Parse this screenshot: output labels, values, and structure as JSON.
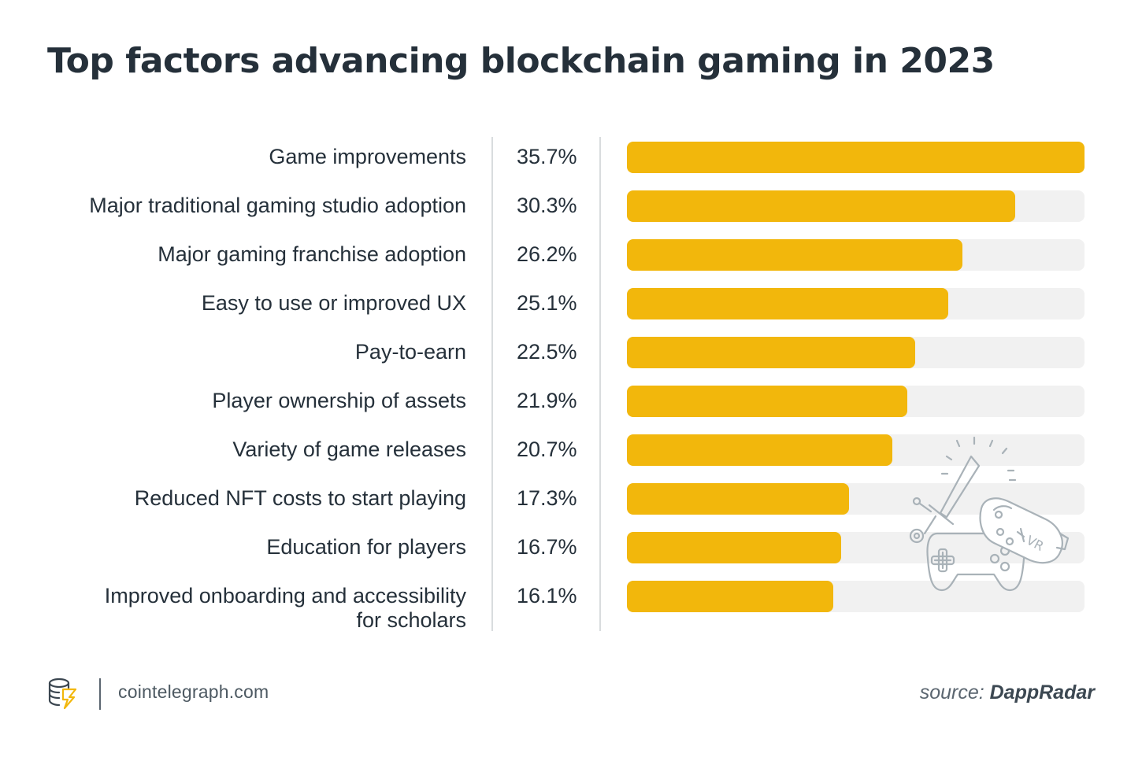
{
  "title": "Top factors advancing blockchain gaming in 2023",
  "chart_data": {
    "type": "bar",
    "orientation": "horizontal",
    "title": "Top factors advancing blockchain gaming in 2023",
    "categories": [
      "Game improvements",
      "Major traditional gaming studio adoption",
      "Major gaming franchise adoption",
      "Easy to use or improved UX",
      "Pay-to-earn",
      "Player ownership of assets",
      "Variety of game releases",
      "Reduced NFT costs to start playing",
      "Education for players",
      "Improved onboarding and accessibility for scholars"
    ],
    "label_lines": [
      [
        "Game improvements"
      ],
      [
        "Major traditional gaming studio adoption"
      ],
      [
        "Major gaming franchise adoption"
      ],
      [
        "Easy to use or improved UX"
      ],
      [
        "Pay-to-earn"
      ],
      [
        "Player ownership of assets"
      ],
      [
        "Variety of game releases"
      ],
      [
        "Reduced NFT costs to start playing"
      ],
      [
        "Education for players"
      ],
      [
        "Improved onboarding and accessibility",
        "for scholars"
      ]
    ],
    "values": [
      35.7,
      30.3,
      26.2,
      25.1,
      22.5,
      21.9,
      20.7,
      17.3,
      16.7,
      16.1
    ],
    "value_labels": [
      "35.7%",
      "30.3%",
      "26.2%",
      "25.1%",
      "22.5%",
      "21.9%",
      "20.7%",
      "17.3%",
      "16.7%",
      "16.1%"
    ],
    "unit": "%",
    "xlim": [
      0,
      35.7
    ],
    "grid": false,
    "colors": {
      "bar": "#f2b70c",
      "track": "#f1f1f1"
    }
  },
  "illustration": {
    "icon": "vr-controller-sword-icon",
    "text": "VR"
  },
  "footer": {
    "logo_icon": "cointelegraph-logo-icon",
    "site": "cointelegraph.com",
    "source_prefix": "source:",
    "source_name": "DappRadar"
  }
}
